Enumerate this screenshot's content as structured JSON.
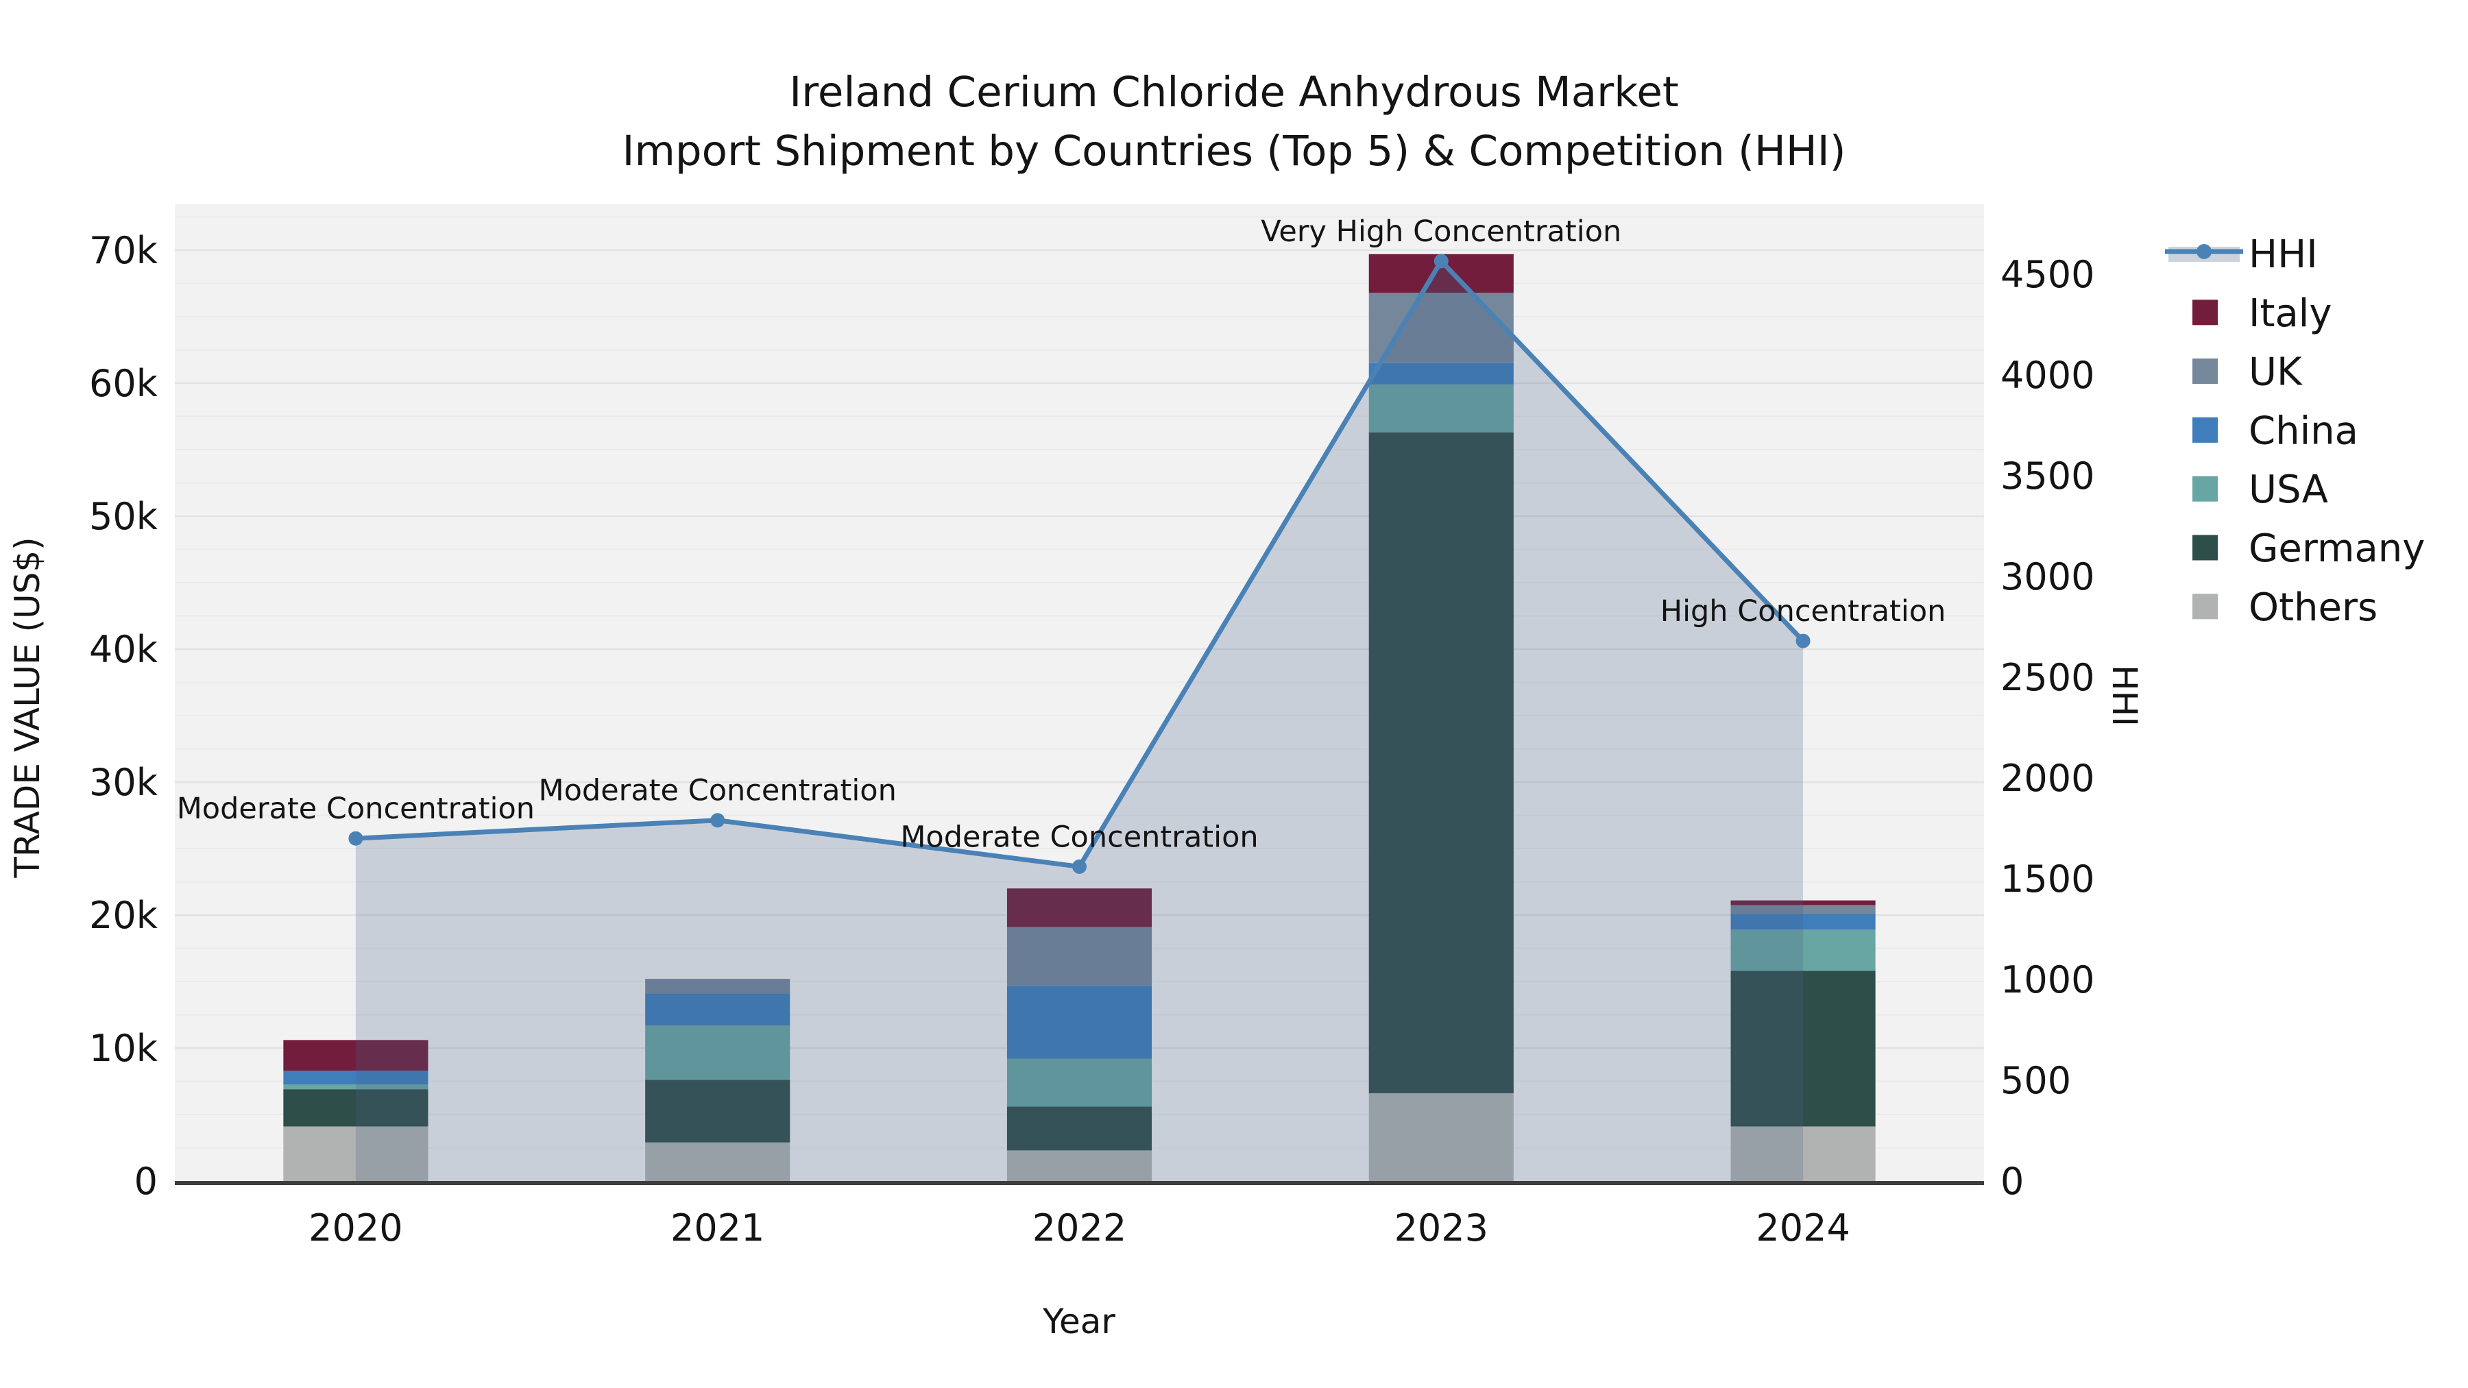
{
  "title": {
    "line1": "Ireland Cerium Chloride Anhydrous Market",
    "line2": "Import Shipment by Countries (Top 5) & Competition (HHI)"
  },
  "style": {
    "plot_bg": "#f2f2f3",
    "grid_major": "#e2e2e4",
    "grid_minor": "#ebebed",
    "axis_line": "#3d3d3d",
    "legend_area_sample": "#ccd3db"
  },
  "chart_data": {
    "type": "bar+line",
    "title": "Ireland Cerium Chloride Anhydrous Market — Import Shipment by Countries (Top 5) & Competition (HHI)",
    "categories": [
      "2020",
      "2021",
      "2022",
      "2023",
      "2024"
    ],
    "x_label": "Year",
    "stack_order_bottom_to_top": [
      "Others",
      "Germany",
      "USA",
      "China",
      "UK",
      "Italy"
    ],
    "series": [
      {
        "name": "Italy",
        "color": "#721d3c",
        "values": [
          2300,
          0,
          2900,
          2900,
          350
        ]
      },
      {
        "name": "UK",
        "color": "#75879b",
        "values": [
          0,
          1100,
          4400,
          5300,
          650
        ]
      },
      {
        "name": "China",
        "color": "#3f7ebb",
        "values": [
          1050,
          2400,
          5500,
          1600,
          1200
        ]
      },
      {
        "name": "USA",
        "color": "#68a6a3",
        "values": [
          350,
          4100,
          3600,
          3600,
          3100
        ]
      },
      {
        "name": "Germany",
        "color": "#2e4e49",
        "values": [
          2800,
          4700,
          3300,
          49700,
          11700
        ]
      },
      {
        "name": "Others",
        "color": "#b0b3b2",
        "values": [
          4100,
          2900,
          2300,
          6600,
          4100
        ]
      }
    ],
    "hhi_line": {
      "name": "HHI",
      "color": "#4a82b6",
      "area_fill": "rgba(70, 97, 133, 0.24)",
      "values": [
        1700,
        1790,
        1560,
        4565,
        2680
      ]
    },
    "annotations": [
      "Moderate Concentration",
      "Moderate Concentration",
      "Moderate Concentration",
      "Very High Concentration",
      "High Concentration"
    ],
    "y_left": {
      "label": "TRADE VALUE (US$)",
      "tick_labels": [
        "0",
        "10k",
        "20k",
        "30k",
        "40k",
        "50k",
        "60k",
        "70k"
      ],
      "tick_values": [
        0,
        10000,
        20000,
        30000,
        40000,
        50000,
        60000,
        70000
      ],
      "range": [
        0,
        73450
      ],
      "minor_grid_step": 2500,
      "grid": "on"
    },
    "y_right": {
      "label": "HHI",
      "tick_labels": [
        "0",
        "500",
        "1000",
        "1500",
        "2000",
        "2500",
        "3000",
        "3500",
        "4000",
        "4500"
      ],
      "tick_values": [
        0,
        500,
        1000,
        1500,
        2000,
        2500,
        3000,
        3500,
        4000,
        4500
      ],
      "range": [
        0,
        4847
      ]
    },
    "legend": {
      "position": "right",
      "items": [
        "HHI",
        "Italy",
        "UK",
        "China",
        "USA",
        "Germany",
        "Others"
      ]
    }
  }
}
